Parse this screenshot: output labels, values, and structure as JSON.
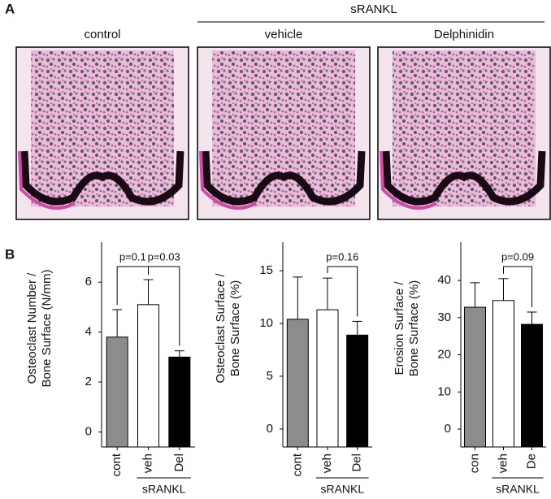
{
  "panel_a": {
    "label": "A",
    "group_label": "sRANKL",
    "images": [
      "control",
      "vehicle",
      "Delphinidin"
    ]
  },
  "panel_b": {
    "label": "B"
  },
  "chart_data": [
    {
      "type": "bar",
      "ylabel": [
        "Osteoclast Number /",
        "Bone Surface (N/mm)"
      ],
      "categories": [
        "cont",
        "veh",
        "Del"
      ],
      "values": [
        3.8,
        5.1,
        3.0
      ],
      "errors": [
        1.1,
        1.0,
        0.25
      ],
      "colors": [
        "#8c8c8c",
        "#ffffff",
        "#000000"
      ],
      "ylim": [
        -0.6,
        7.6
      ],
      "yticks": [
        0,
        2,
        4,
        6
      ],
      "group_label": "sRANKL",
      "annotations": [
        "p=0.1",
        "p=0.03"
      ]
    },
    {
      "type": "bar",
      "ylabel": [
        "Osteoclast Surface /",
        "Bone Surface (%)"
      ],
      "categories": [
        "cont",
        "veh",
        "Del"
      ],
      "values": [
        10.4,
        11.3,
        8.9
      ],
      "errors": [
        4.0,
        3.0,
        1.3
      ],
      "colors": [
        "#8c8c8c",
        "#ffffff",
        "#000000"
      ],
      "ylim": [
        -1.7,
        17.7
      ],
      "yticks": [
        0,
        5,
        10,
        15
      ],
      "group_label": "sRANKL",
      "annotations": [
        "p=0.16"
      ]
    },
    {
      "type": "bar",
      "ylabel": [
        "Erosion Surface /",
        "Bone Surface (%)"
      ],
      "categories": [
        "con",
        "veh",
        "De"
      ],
      "values": [
        32.8,
        34.6,
        28.2
      ],
      "errors": [
        6.6,
        5.9,
        3.3
      ],
      "colors": [
        "#8c8c8c",
        "#ffffff",
        "#000000"
      ],
      "ylim": [
        -4.8,
        50.3
      ],
      "yticks": [
        0,
        10,
        20,
        30,
        40
      ],
      "group_label": "sRANKL",
      "annotations": [
        "p=0.09"
      ]
    }
  ]
}
